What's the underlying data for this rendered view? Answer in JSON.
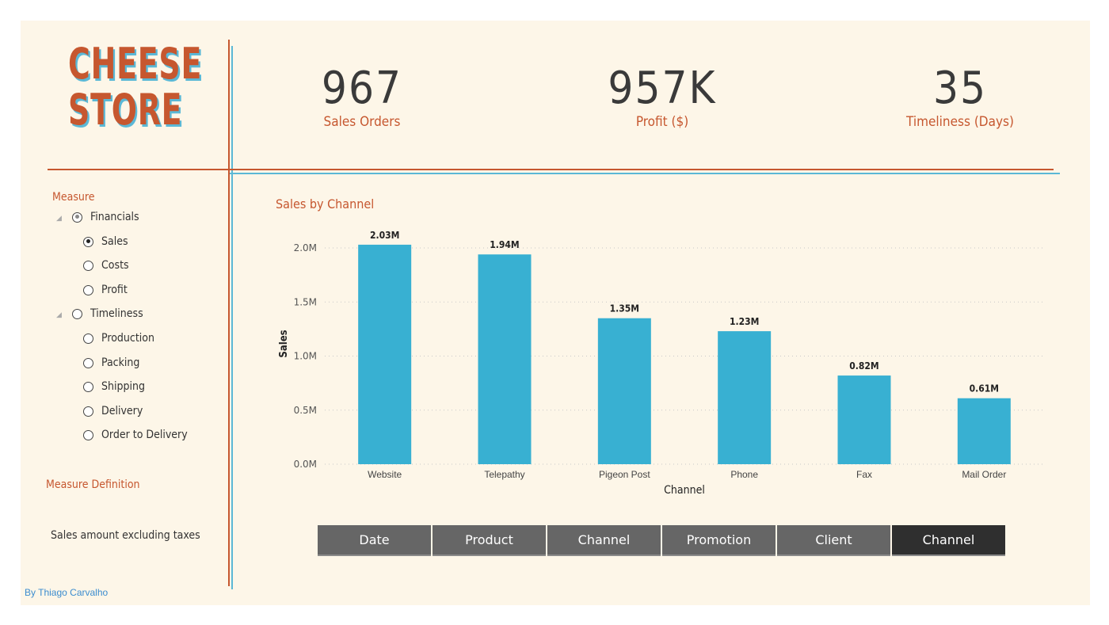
{
  "logo": {
    "line1": "CHEESE",
    "line2": "STORE"
  },
  "kpis": [
    {
      "value": "967",
      "label": "Sales Orders"
    },
    {
      "value": "957K",
      "label": "Profit ($)"
    },
    {
      "value": "35",
      "label": "Timeliness (Days)"
    }
  ],
  "slicer": {
    "title": "Measure",
    "groups": [
      {
        "label": "Financials",
        "items": [
          "Sales",
          "Costs",
          "Profit"
        ]
      },
      {
        "label": "Timeliness",
        "items": [
          "Production",
          "Packing",
          "Shipping",
          "Delivery",
          "Order to Delivery"
        ]
      }
    ],
    "selected": "Sales"
  },
  "definition": {
    "title": "Measure Definition",
    "text": "Sales amount excluding taxes"
  },
  "author": "By Thiago Carvalho",
  "chart_title": "Sales by Channel",
  "chart_data": {
    "type": "bar",
    "categories": [
      "Website",
      "Telepathy",
      "Pigeon Post",
      "Phone",
      "Fax",
      "Mail Order"
    ],
    "values": [
      2.03,
      1.94,
      1.35,
      1.23,
      0.82,
      0.61
    ],
    "value_labels": [
      "2.03M",
      "1.94M",
      "1.35M",
      "1.23M",
      "0.82M",
      "0.61M"
    ],
    "xlabel": "Channel",
    "ylabel": "Sales",
    "yticks": [
      "0.0M",
      "0.5M",
      "1.0M",
      "1.5M",
      "2.0M"
    ],
    "ylim": [
      0,
      2.0
    ],
    "grid": true,
    "bar_color": "#38b0d2"
  },
  "nav_buttons": [
    "Date",
    "Product",
    "Channel",
    "Promotion",
    "Client",
    "Channel"
  ],
  "active_button_index": 5,
  "colors": {
    "accent": "#c6572f",
    "secondary": "#5bb8d6",
    "background": "#fdf6e8"
  }
}
